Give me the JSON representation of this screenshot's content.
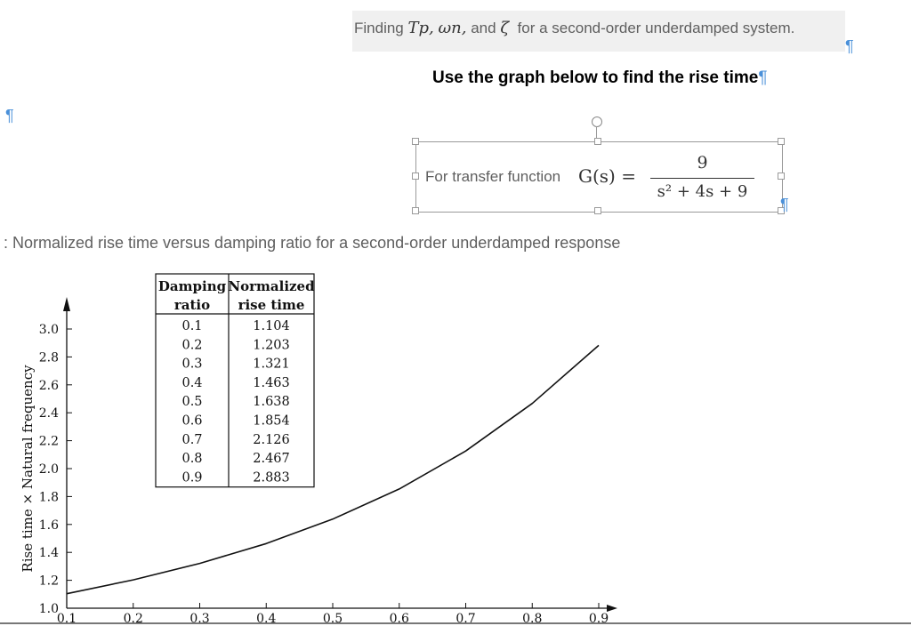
{
  "header": {
    "finding_prefix": "Finding",
    "sym_tp": "Tp,",
    "sym_wn": "ωn,",
    "and_text": "and",
    "sym_zeta": "ζ",
    "finding_suffix": "for a second-order underdamped system.",
    "pilcrow": "¶"
  },
  "instruction": {
    "text": "Use the graph below to find the rise time"
  },
  "equation": {
    "label": "For transfer function",
    "lhs": "G(s) =",
    "numerator": "9",
    "denominator": "s² + 4s + 9"
  },
  "caption": {
    "text": ": Normalized rise time versus damping ratio for a second-order underdamped response"
  },
  "chart_data": {
    "type": "line",
    "ylabel": "Rise time × Natural frequency",
    "xlabel": "",
    "ylim": [
      1.0,
      3.0
    ],
    "xlim": [
      0.1,
      0.9
    ],
    "y_ticks": [
      "3.0",
      "2.8",
      "2.6",
      "2.4",
      "2.2",
      "2.0",
      "1.8",
      "1.6",
      "1.4",
      "1.2",
      "1.0"
    ],
    "x_ticks": [
      "0.1",
      "0.2",
      "0.3",
      "0.4",
      "0.5",
      "0.6",
      "0.7",
      "0.8",
      "0.9"
    ],
    "series": [
      {
        "x": [
          0.1,
          0.2,
          0.3,
          0.4,
          0.5,
          0.6,
          0.7,
          0.8,
          0.9
        ],
        "values": [
          1.104,
          1.203,
          1.321,
          1.463,
          1.638,
          1.854,
          2.126,
          2.467,
          2.883
        ]
      }
    ],
    "table": {
      "headers": [
        [
          "Damping",
          "ratio"
        ],
        [
          "Normalized",
          "rise time"
        ]
      ],
      "rows": [
        [
          "0.1",
          "1.104"
        ],
        [
          "0.2",
          "1.203"
        ],
        [
          "0.3",
          "1.321"
        ],
        [
          "0.4",
          "1.463"
        ],
        [
          "0.5",
          "1.638"
        ],
        [
          "0.6",
          "1.854"
        ],
        [
          "0.7",
          "2.126"
        ],
        [
          "0.8",
          "2.467"
        ],
        [
          "0.9",
          "2.883"
        ]
      ]
    }
  }
}
